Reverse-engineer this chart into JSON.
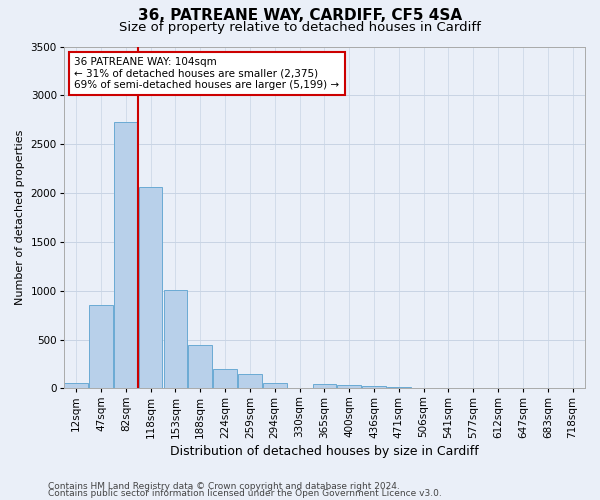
{
  "title1": "36, PATREANE WAY, CARDIFF, CF5 4SA",
  "title2": "Size of property relative to detached houses in Cardiff",
  "xlabel": "Distribution of detached houses by size in Cardiff",
  "ylabel": "Number of detached properties",
  "categories": [
    "12sqm",
    "47sqm",
    "82sqm",
    "118sqm",
    "153sqm",
    "188sqm",
    "224sqm",
    "259sqm",
    "294sqm",
    "330sqm",
    "365sqm",
    "400sqm",
    "436sqm",
    "471sqm",
    "506sqm",
    "541sqm",
    "577sqm",
    "612sqm",
    "647sqm",
    "683sqm",
    "718sqm"
  ],
  "values": [
    55,
    850,
    2730,
    2060,
    1010,
    450,
    200,
    145,
    55,
    0,
    50,
    40,
    25,
    15,
    0,
    0,
    0,
    0,
    0,
    0,
    0
  ],
  "bar_color": "#b8d0ea",
  "bar_edge_color": "#6aaad4",
  "vline_color": "#cc0000",
  "vline_x_index": 2,
  "annotation_line1": "36 PATREANE WAY: 104sqm",
  "annotation_line2": "← 31% of detached houses are smaller (2,375)",
  "annotation_line3": "69% of semi-detached houses are larger (5,199) →",
  "annotation_box_edge_color": "#cc0000",
  "ylim": [
    0,
    3500
  ],
  "yticks": [
    0,
    500,
    1000,
    1500,
    2000,
    2500,
    3000,
    3500
  ],
  "grid_color": "#c8d4e4",
  "bg_color": "#eaeff8",
  "plot_bg_color": "#eaeff8",
  "footer1": "Contains HM Land Registry data © Crown copyright and database right 2024.",
  "footer2": "Contains public sector information licensed under the Open Government Licence v3.0.",
  "title1_fontsize": 11,
  "title2_fontsize": 9.5,
  "xlabel_fontsize": 9,
  "ylabel_fontsize": 8,
  "tick_fontsize": 7.5,
  "annot_fontsize": 7.5,
  "footer_fontsize": 6.5
}
